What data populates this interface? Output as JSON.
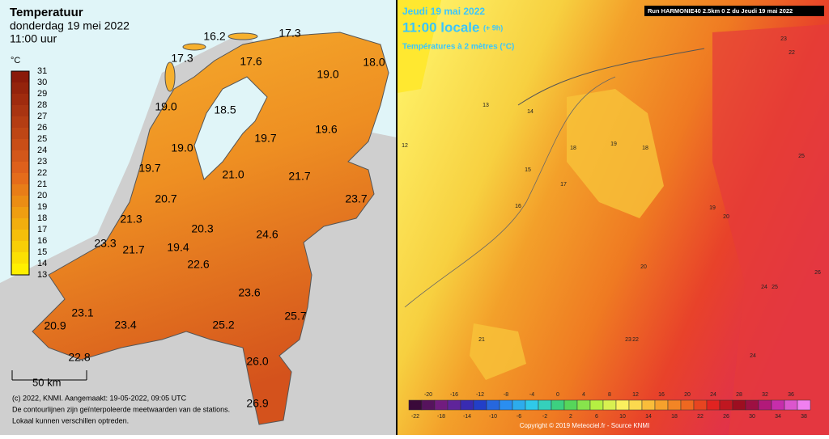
{
  "left_map": {
    "title": "Temperatuur",
    "date": "donderdag 19 mei 2022",
    "time": "11:00 uur",
    "unit": "°C",
    "legend": [
      31,
      30,
      29,
      28,
      27,
      26,
      25,
      24,
      23,
      22,
      21,
      20,
      19,
      18,
      17,
      16,
      15,
      14,
      13
    ],
    "scale_label": "50 km",
    "footer": [
      "(c) 2022, KNMI. Aangemaakt: 19-05-2022, 09:05 UTC",
      "De contourlijnen zijn geïnterpoleerde meetwaarden van de stations.",
      "Lokaal kunnen verschillen optreden."
    ],
    "stations": [
      "16.2",
      "17.3",
      "17.3",
      "17.6",
      "18.0",
      "19.0",
      "19.0",
      "18.5",
      "19.7",
      "19.6",
      "19.0",
      "19.7",
      "21.0",
      "21.7",
      "23.7",
      "20.7",
      "21.3",
      "20.3",
      "24.6",
      "23.3",
      "21.7",
      "19.4",
      "22.6",
      "23.6",
      "25.7",
      "23.1",
      "20.9",
      "23.4",
      "25.2",
      "22.8",
      "26.0",
      "26.9"
    ]
  },
  "right_map": {
    "date": "Jeudi 19 mai 2022",
    "time": "11:00 locale",
    "offset": "(+ 9h)",
    "subtitle": "Températures à 2 mètres (°C)",
    "run": "Run HARMONIE40 2.5km 0 Z du Jeudi 19 mai 2022",
    "copyright": "Copyright © 2019 Meteociel.fr - Source KNMI",
    "labels": [
      "13",
      "14",
      "15",
      "16",
      "17",
      "18",
      "18",
      "19",
      "19",
      "20",
      "20",
      "21",
      "22",
      "23",
      "24",
      "25",
      "26",
      "12",
      "22",
      "23",
      "25",
      "24"
    ],
    "colorbar": [
      -22,
      -20,
      -18,
      -16,
      -14,
      -12,
      -10,
      -8,
      -6,
      -4,
      -2,
      0,
      2,
      4,
      6,
      8,
      10,
      12,
      14,
      16,
      18,
      20,
      22,
      24,
      26,
      28,
      30,
      32,
      34,
      36,
      38
    ]
  }
}
